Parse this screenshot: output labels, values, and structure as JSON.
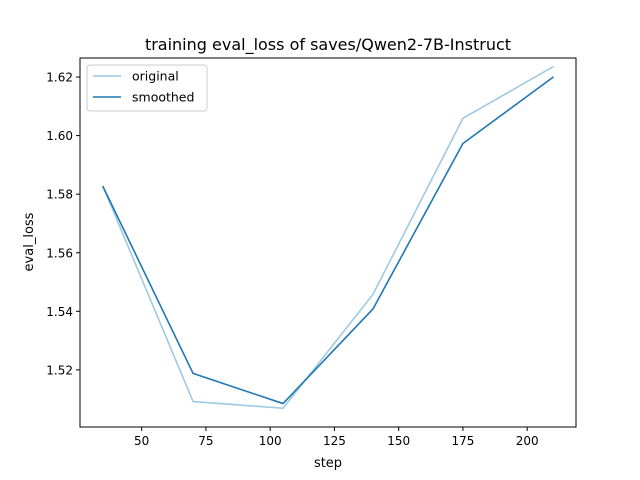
{
  "chart_data": {
    "type": "line",
    "title": "training eval_loss of saves/Qwen2-7B-Instruct",
    "xlabel": "step",
    "ylabel": "eval_loss",
    "xlim": [
      26,
      219
    ],
    "ylim": [
      1.5005,
      1.6265
    ],
    "x_ticks": [
      50,
      75,
      100,
      125,
      150,
      175,
      200
    ],
    "y_ticks": [
      1.52,
      1.54,
      1.56,
      1.58,
      1.6,
      1.62
    ],
    "y_tick_labels": [
      "1.52",
      "1.54",
      "1.56",
      "1.58",
      "1.60",
      "1.62"
    ],
    "grid": false,
    "legend_position": "top-left",
    "series": [
      {
        "name": "original",
        "color": "#9ecae1",
        "x": [
          35,
          70,
          105,
          140,
          175,
          210
        ],
        "y": [
          1.5825,
          1.5092,
          1.5069,
          1.5458,
          1.6059,
          1.6235
        ]
      },
      {
        "name": "smoothed",
        "color": "#1f77b4",
        "x": [
          35,
          70,
          105,
          140,
          175,
          210
        ],
        "y": [
          1.5825,
          1.5188,
          1.5085,
          1.5408,
          1.5973,
          1.6199
        ]
      }
    ]
  }
}
